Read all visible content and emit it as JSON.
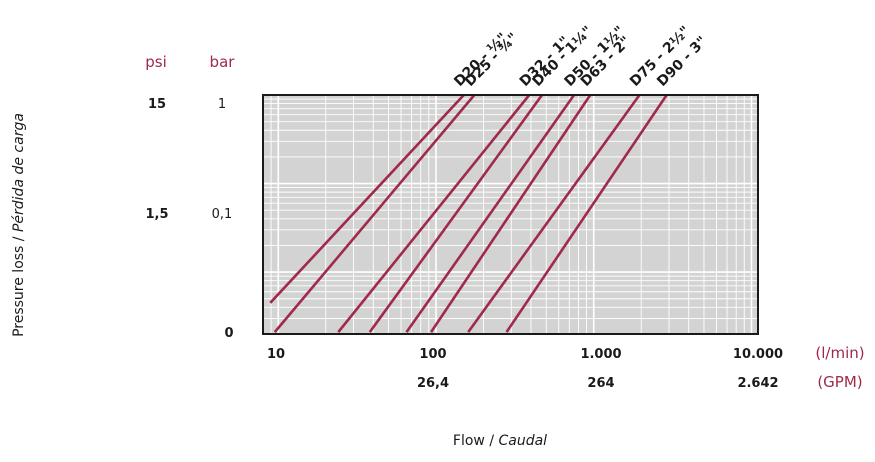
{
  "colors": {
    "series": "#a02a4a",
    "plot_bg": "#d3d3d3",
    "grid": "#ffffff",
    "frame": "#1a1a1a",
    "unit_text": "#a02a4a"
  },
  "chart_data": {
    "type": "line",
    "title": "",
    "x_log": true,
    "y_log": true,
    "xlim": [
      8,
      11000
    ],
    "ylim": [
      0.002,
      1
    ],
    "grid": true,
    "xlabel": {
      "main": "Flow / ",
      "italic": "Caudal"
    },
    "ylabel": {
      "main": "Pressure loss / ",
      "italic": "Pérdida de carga"
    },
    "y_units": {
      "psi": "psi",
      "bar": "bar"
    },
    "x_units": {
      "lmin": "(l/min)",
      "gpm": "(GPM)"
    },
    "y_ticks_psi": [
      "15",
      "1,5",
      "0"
    ],
    "y_ticks_bar": [
      "1",
      "0,1",
      ""
    ],
    "x_ticks_lmin": [
      "10",
      "100",
      "1.000",
      "10.000"
    ],
    "x_ticks_gpm": [
      "",
      "26,4",
      "264",
      "2.642"
    ],
    "series": [
      {
        "name": "D20 - ½\"",
        "x": [
          8.9,
          150
        ],
        "y": [
          0.0045,
          1
        ]
      },
      {
        "name": "D25 - ¾\"",
        "x": [
          9.5,
          175
        ],
        "y": [
          0.0021,
          1
        ]
      },
      {
        "name": "D32 - 1\"",
        "x": [
          24,
          390
        ],
        "y": [
          0.0021,
          1
        ]
      },
      {
        "name": "D40 - 1¼\"",
        "x": [
          38,
          470
        ],
        "y": [
          0.0021,
          1
        ]
      },
      {
        "name": "D50 - 1½\"",
        "x": [
          65,
          750
        ],
        "y": [
          0.0021,
          1
        ]
      },
      {
        "name": "D63 - 2\"",
        "x": [
          93,
          950
        ],
        "y": [
          0.0021,
          1
        ]
      },
      {
        "name": "D75 - 2½\"",
        "x": [
          160,
          1950
        ],
        "y": [
          0.0021,
          1
        ]
      },
      {
        "name": "D90 - 3\"",
        "x": [
          280,
          2900
        ],
        "y": [
          0.0021,
          1
        ]
      }
    ]
  }
}
